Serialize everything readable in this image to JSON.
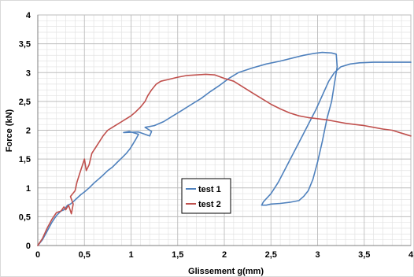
{
  "chart_data": {
    "type": "line",
    "xlabel": "Glissement g(mm)",
    "ylabel": "Force (kN)",
    "xlim": [
      0,
      4
    ],
    "ylim": [
      0,
      4
    ],
    "x_ticks": [
      "0",
      "0,5",
      "1",
      "1,5",
      "2",
      "2,5",
      "3",
      "3,5",
      "4"
    ],
    "y_ticks": [
      "0",
      "0,5",
      "1",
      "1,5",
      "2",
      "2,5",
      "3",
      "3,5",
      "4"
    ],
    "grid": true,
    "legend_position": "center",
    "series": [
      {
        "name": "test 1",
        "color": "#4f81bd",
        "points": [
          [
            0,
            0
          ],
          [
            0.05,
            0.1
          ],
          [
            0.1,
            0.25
          ],
          [
            0.15,
            0.4
          ],
          [
            0.2,
            0.52
          ],
          [
            0.25,
            0.6
          ],
          [
            0.28,
            0.62
          ],
          [
            0.3,
            0.66
          ],
          [
            0.32,
            0.7
          ],
          [
            0.35,
            0.72
          ],
          [
            0.38,
            0.76
          ],
          [
            0.42,
            0.82
          ],
          [
            0.46,
            0.88
          ],
          [
            0.5,
            0.93
          ],
          [
            0.55,
            1.0
          ],
          [
            0.6,
            1.08
          ],
          [
            0.65,
            1.15
          ],
          [
            0.7,
            1.22
          ],
          [
            0.75,
            1.3
          ],
          [
            0.8,
            1.36
          ],
          [
            0.85,
            1.44
          ],
          [
            0.9,
            1.52
          ],
          [
            0.95,
            1.6
          ],
          [
            0.99,
            1.68
          ],
          [
            1.02,
            1.76
          ],
          [
            1.05,
            1.84
          ],
          [
            1.08,
            1.93
          ],
          [
            0.98,
            1.98
          ],
          [
            0.92,
            1.96
          ],
          [
            1.08,
            1.97
          ],
          [
            1.2,
            1.9
          ],
          [
            1.22,
            1.98
          ],
          [
            1.15,
            2.05
          ],
          [
            1.25,
            2.08
          ],
          [
            1.35,
            2.15
          ],
          [
            1.45,
            2.25
          ],
          [
            1.55,
            2.35
          ],
          [
            1.65,
            2.45
          ],
          [
            1.75,
            2.55
          ],
          [
            1.85,
            2.67
          ],
          [
            1.95,
            2.78
          ],
          [
            2.05,
            2.9
          ],
          [
            2.15,
            3.0
          ],
          [
            2.3,
            3.08
          ],
          [
            2.45,
            3.15
          ],
          [
            2.6,
            3.2
          ],
          [
            2.75,
            3.26
          ],
          [
            2.85,
            3.3
          ],
          [
            2.95,
            3.33
          ],
          [
            3.05,
            3.35
          ],
          [
            3.15,
            3.34
          ],
          [
            3.2,
            3.32
          ],
          [
            3.21,
            3.1
          ],
          [
            3.18,
            2.8
          ],
          [
            3.15,
            2.5
          ],
          [
            3.1,
            2.2
          ],
          [
            3.05,
            1.8
          ],
          [
            3.0,
            1.45
          ],
          [
            2.95,
            1.15
          ],
          [
            2.9,
            0.95
          ],
          [
            2.85,
            0.85
          ],
          [
            2.8,
            0.78
          ],
          [
            2.7,
            0.75
          ],
          [
            2.6,
            0.73
          ],
          [
            2.5,
            0.72
          ],
          [
            2.45,
            0.7
          ],
          [
            2.4,
            0.7
          ],
          [
            2.42,
            0.76
          ],
          [
            2.5,
            0.9
          ],
          [
            2.58,
            1.1
          ],
          [
            2.66,
            1.35
          ],
          [
            2.74,
            1.6
          ],
          [
            2.82,
            1.85
          ],
          [
            2.9,
            2.1
          ],
          [
            2.98,
            2.35
          ],
          [
            3.05,
            2.6
          ],
          [
            3.12,
            2.85
          ],
          [
            3.18,
            3.0
          ],
          [
            3.25,
            3.1
          ],
          [
            3.35,
            3.15
          ],
          [
            3.45,
            3.17
          ],
          [
            3.6,
            3.18
          ],
          [
            3.8,
            3.18
          ],
          [
            4.0,
            3.18
          ]
        ]
      },
      {
        "name": "test 2",
        "color": "#c0504d",
        "points": [
          [
            0,
            0
          ],
          [
            0.05,
            0.12
          ],
          [
            0.1,
            0.3
          ],
          [
            0.15,
            0.45
          ],
          [
            0.2,
            0.57
          ],
          [
            0.25,
            0.6
          ],
          [
            0.28,
            0.67
          ],
          [
            0.3,
            0.62
          ],
          [
            0.33,
            0.7
          ],
          [
            0.36,
            0.55
          ],
          [
            0.38,
            0.72
          ],
          [
            0.35,
            0.85
          ],
          [
            0.4,
            0.95
          ],
          [
            0.42,
            1.1
          ],
          [
            0.45,
            1.25
          ],
          [
            0.48,
            1.4
          ],
          [
            0.5,
            1.5
          ],
          [
            0.52,
            1.3
          ],
          [
            0.55,
            1.4
          ],
          [
            0.58,
            1.6
          ],
          [
            0.62,
            1.7
          ],
          [
            0.66,
            1.8
          ],
          [
            0.7,
            1.9
          ],
          [
            0.75,
            2.0
          ],
          [
            0.8,
            2.05
          ],
          [
            0.85,
            2.1
          ],
          [
            0.9,
            2.15
          ],
          [
            0.95,
            2.2
          ],
          [
            1.0,
            2.25
          ],
          [
            1.05,
            2.32
          ],
          [
            1.1,
            2.4
          ],
          [
            1.15,
            2.5
          ],
          [
            1.18,
            2.6
          ],
          [
            1.22,
            2.7
          ],
          [
            1.27,
            2.8
          ],
          [
            1.32,
            2.85
          ],
          [
            1.4,
            2.88
          ],
          [
            1.5,
            2.92
          ],
          [
            1.6,
            2.95
          ],
          [
            1.7,
            2.96
          ],
          [
            1.8,
            2.97
          ],
          [
            1.9,
            2.96
          ],
          [
            2.0,
            2.9
          ],
          [
            2.1,
            2.85
          ],
          [
            2.2,
            2.75
          ],
          [
            2.3,
            2.65
          ],
          [
            2.4,
            2.55
          ],
          [
            2.5,
            2.45
          ],
          [
            2.6,
            2.37
          ],
          [
            2.7,
            2.3
          ],
          [
            2.8,
            2.25
          ],
          [
            2.9,
            2.22
          ],
          [
            3.0,
            2.2
          ],
          [
            3.1,
            2.18
          ],
          [
            3.2,
            2.15
          ],
          [
            3.3,
            2.12
          ],
          [
            3.4,
            2.1
          ],
          [
            3.5,
            2.08
          ],
          [
            3.6,
            2.05
          ],
          [
            3.7,
            2.02
          ],
          [
            3.8,
            2.0
          ],
          [
            3.9,
            1.95
          ],
          [
            4.0,
            1.9
          ]
        ]
      }
    ]
  }
}
